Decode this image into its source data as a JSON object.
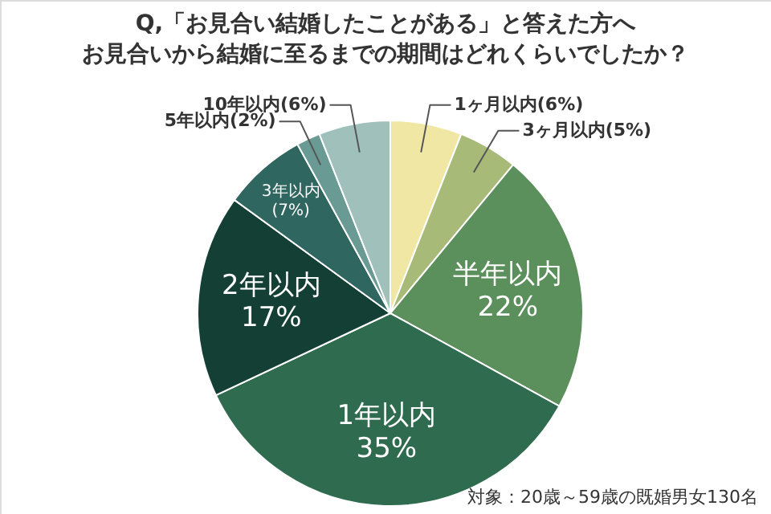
{
  "chart_data": {
    "type": "pie",
    "title": "Q,「お見合い結婚したことがある」と答えた方へ",
    "subtitle": "お見合いから結婚に至るまでの期間はどれくらいでしたか？",
    "categories": [
      "1ヶ月以内",
      "3ヶ月以内",
      "半年以内",
      "1年以内",
      "2年以内",
      "3年以内",
      "5年以内",
      "10年以内"
    ],
    "values": [
      6,
      5,
      22,
      35,
      17,
      7,
      2,
      6
    ],
    "value_labels": [
      "(6%)",
      "(5%)",
      "22%",
      "35%",
      "17%",
      "(7%)",
      "(2%)",
      "(6%)"
    ],
    "colors": [
      "#f1e7a4",
      "#a8ba78",
      "#5b8f5b",
      "#2f6b4e",
      "#143f35",
      "#2f6660",
      "#6a9a94",
      "#a0c0bc"
    ],
    "annotations": [
      "対象：20歳～59歳の既婚男女130名"
    ]
  }
}
